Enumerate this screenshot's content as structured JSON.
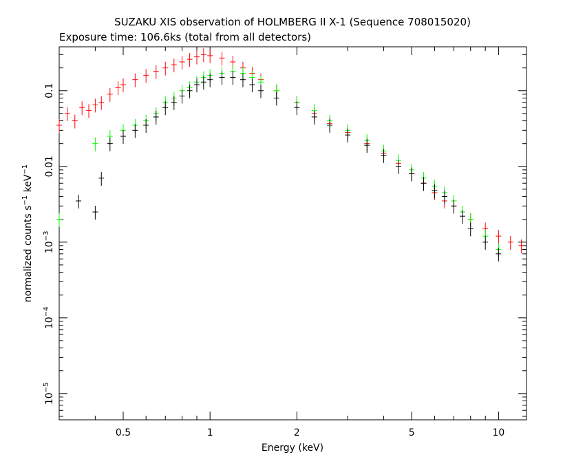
{
  "chart_data": {
    "type": "scatter",
    "title": "SUZAKU XIS observation of HOLMBERG II X-1 (Sequence 708015020)",
    "subtitle": "Exposure time: 106.6ks (total from all detectors)",
    "xlabel": "Energy (keV)",
    "ylabel_main": "normalized counts s",
    "ylabel_sup1": "−1",
    "ylabel_mid": " keV",
    "ylabel_sup2": "−1",
    "x_scale": "log",
    "y_scale": "log",
    "xlim": [
      0.3,
      12.5
    ],
    "ylim": [
      4.5e-06,
      0.38
    ],
    "grid": false,
    "x_ticks": [
      {
        "value": 0.5,
        "label": "0.5"
      },
      {
        "value": 1,
        "label": "1"
      },
      {
        "value": 2,
        "label": "2"
      },
      {
        "value": 5,
        "label": "5"
      },
      {
        "value": 10,
        "label": "10"
      }
    ],
    "y_ticks": [
      {
        "value": 0.1,
        "label": "0.1",
        "exp": ""
      },
      {
        "value": 0.01,
        "label": "0.01",
        "exp": ""
      },
      {
        "value": 0.001,
        "label": "10",
        "exp": "−3"
      },
      {
        "value": 0.0001,
        "label": "10",
        "exp": "−4"
      },
      {
        "value": 1e-05,
        "label": "10",
        "exp": "−5"
      }
    ],
    "series": [
      {
        "color": "#ff0000",
        "points": [
          [
            0.3,
            0.035
          ],
          [
            0.32,
            0.05
          ],
          [
            0.34,
            0.04
          ],
          [
            0.36,
            0.06
          ],
          [
            0.38,
            0.055
          ],
          [
            0.4,
            0.065
          ],
          [
            0.42,
            0.07
          ],
          [
            0.45,
            0.09
          ],
          [
            0.48,
            0.11
          ],
          [
            0.5,
            0.12
          ],
          [
            0.55,
            0.14
          ],
          [
            0.6,
            0.16
          ],
          [
            0.65,
            0.18
          ],
          [
            0.7,
            0.2
          ],
          [
            0.75,
            0.22
          ],
          [
            0.8,
            0.24
          ],
          [
            0.85,
            0.26
          ],
          [
            0.9,
            0.28
          ],
          [
            0.95,
            0.3
          ],
          [
            1.0,
            0.29
          ],
          [
            1.1,
            0.27
          ],
          [
            1.2,
            0.24
          ],
          [
            1.3,
            0.2
          ],
          [
            1.4,
            0.17
          ],
          [
            1.5,
            0.14
          ],
          [
            1.7,
            0.1
          ],
          [
            2.0,
            0.07
          ],
          [
            2.3,
            0.05
          ],
          [
            2.6,
            0.037
          ],
          [
            3.0,
            0.028
          ],
          [
            3.5,
            0.02
          ],
          [
            4.0,
            0.015
          ],
          [
            4.5,
            0.011
          ],
          [
            5.0,
            0.008
          ],
          [
            5.5,
            0.006
          ],
          [
            6.0,
            0.0045
          ],
          [
            6.5,
            0.0035
          ],
          [
            7.0,
            0.003
          ],
          [
            7.5,
            0.0025
          ],
          [
            8.0,
            0.002
          ],
          [
            9.0,
            0.0015
          ],
          [
            10.0,
            0.0012
          ],
          [
            11.0,
            0.001
          ],
          [
            12.0,
            0.0009
          ]
        ]
      },
      {
        "color": "#00ff00",
        "points": [
          [
            0.3,
            0.002
          ],
          [
            0.4,
            0.02
          ],
          [
            0.45,
            0.025
          ],
          [
            0.5,
            0.03
          ],
          [
            0.55,
            0.035
          ],
          [
            0.6,
            0.04
          ],
          [
            0.65,
            0.05
          ],
          [
            0.7,
            0.07
          ],
          [
            0.75,
            0.08
          ],
          [
            0.8,
            0.1
          ],
          [
            0.85,
            0.11
          ],
          [
            0.9,
            0.13
          ],
          [
            0.95,
            0.15
          ],
          [
            1.0,
            0.16
          ],
          [
            1.1,
            0.17
          ],
          [
            1.2,
            0.18
          ],
          [
            1.3,
            0.17
          ],
          [
            1.4,
            0.15
          ],
          [
            1.5,
            0.13
          ],
          [
            1.7,
            0.1
          ],
          [
            2.0,
            0.07
          ],
          [
            2.3,
            0.055
          ],
          [
            2.6,
            0.04
          ],
          [
            3.0,
            0.03
          ],
          [
            3.5,
            0.022
          ],
          [
            4.0,
            0.016
          ],
          [
            4.5,
            0.012
          ],
          [
            5.0,
            0.009
          ],
          [
            5.5,
            0.007
          ],
          [
            6.0,
            0.0055
          ],
          [
            6.5,
            0.0045
          ],
          [
            7.0,
            0.0035
          ],
          [
            7.5,
            0.0025
          ],
          [
            8.0,
            0.002
          ],
          [
            9.0,
            0.0012
          ],
          [
            10.0,
            0.0008
          ]
        ]
      },
      {
        "color": "#000000",
        "points": [
          [
            0.35,
            0.0035
          ],
          [
            0.4,
            0.0025
          ],
          [
            0.42,
            0.007
          ],
          [
            0.45,
            0.02
          ],
          [
            0.5,
            0.025
          ],
          [
            0.55,
            0.03
          ],
          [
            0.6,
            0.035
          ],
          [
            0.65,
            0.045
          ],
          [
            0.7,
            0.06
          ],
          [
            0.75,
            0.07
          ],
          [
            0.8,
            0.085
          ],
          [
            0.85,
            0.1
          ],
          [
            0.9,
            0.12
          ],
          [
            0.95,
            0.13
          ],
          [
            1.0,
            0.14
          ],
          [
            1.1,
            0.15
          ],
          [
            1.2,
            0.15
          ],
          [
            1.3,
            0.14
          ],
          [
            1.4,
            0.12
          ],
          [
            1.5,
            0.1
          ],
          [
            1.7,
            0.08
          ],
          [
            2.0,
            0.06
          ],
          [
            2.3,
            0.045
          ],
          [
            2.6,
            0.035
          ],
          [
            3.0,
            0.026
          ],
          [
            3.5,
            0.019
          ],
          [
            4.0,
            0.014
          ],
          [
            4.5,
            0.01
          ],
          [
            5.0,
            0.008
          ],
          [
            5.5,
            0.006
          ],
          [
            6.0,
            0.0048
          ],
          [
            6.5,
            0.004
          ],
          [
            7.0,
            0.003
          ],
          [
            7.5,
            0.0022
          ],
          [
            8.0,
            0.0015
          ],
          [
            9.0,
            0.001
          ],
          [
            10.0,
            0.0007
          ]
        ]
      }
    ]
  }
}
